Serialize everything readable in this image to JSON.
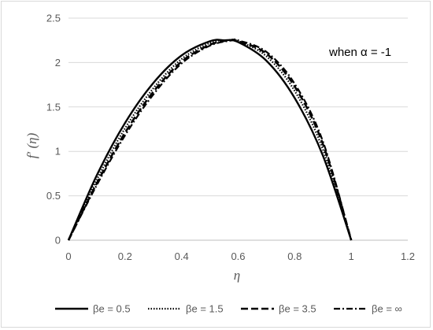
{
  "chart_data": {
    "type": "line",
    "xlabel": "η",
    "ylabel": "f′ (η)",
    "annotation": "when α = -1",
    "xlim": [
      0,
      1.2
    ],
    "ylim": [
      0,
      2.5
    ],
    "x_ticks": [
      "0",
      "0.2",
      "0.4",
      "0.6",
      "0.8",
      "1",
      "1.2"
    ],
    "y_ticks": [
      "0",
      "0.5",
      "1",
      "1.5",
      "2",
      "2.5"
    ],
    "grid": "horizontal",
    "legend_position": "bottom",
    "series": [
      {
        "name": "βe = 0.5",
        "style": "solid",
        "x": [
          0,
          0.1,
          0.2,
          0.3,
          0.4,
          0.5,
          0.55,
          0.6,
          0.7,
          0.8,
          0.9,
          1.0
        ],
        "y": [
          0,
          0.73,
          1.32,
          1.77,
          2.08,
          2.24,
          2.25,
          2.23,
          2.02,
          1.6,
          0.95,
          0
        ]
      },
      {
        "name": "βe = 1.5",
        "style": "dotted",
        "x": [
          0,
          0.1,
          0.2,
          0.3,
          0.4,
          0.5,
          0.56,
          0.6,
          0.7,
          0.8,
          0.9,
          1.0
        ],
        "y": [
          0,
          0.68,
          1.26,
          1.71,
          2.04,
          2.22,
          2.25,
          2.24,
          2.07,
          1.68,
          1.02,
          0
        ]
      },
      {
        "name": "βe = 3.5",
        "style": "dashed",
        "x": [
          0,
          0.1,
          0.2,
          0.3,
          0.4,
          0.5,
          0.57,
          0.6,
          0.7,
          0.8,
          0.9,
          1.0
        ],
        "y": [
          0,
          0.64,
          1.21,
          1.67,
          2.01,
          2.2,
          2.25,
          2.24,
          2.1,
          1.73,
          1.08,
          0
        ]
      },
      {
        "name": "βe = ∞",
        "style": "dashdot",
        "x": [
          0,
          0.1,
          0.2,
          0.3,
          0.4,
          0.5,
          0.58,
          0.6,
          0.7,
          0.8,
          0.9,
          1.0
        ],
        "y": [
          0,
          0.62,
          1.18,
          1.64,
          1.99,
          2.19,
          2.25,
          2.25,
          2.12,
          1.76,
          1.11,
          0
        ]
      }
    ]
  }
}
